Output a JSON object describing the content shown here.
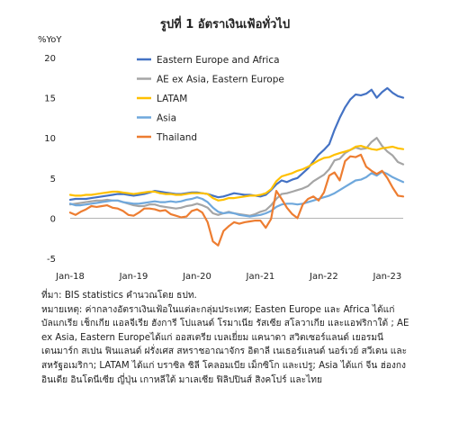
{
  "chart_data": {
    "type": "line",
    "title": "รูปที่ 1 อัตราเงินเฟ้อทั่วไป",
    "ylabel": "%YoY",
    "xlabel": "",
    "ylim": [
      -5,
      20
    ],
    "yticks": [
      -5,
      0,
      5,
      10,
      15,
      20
    ],
    "x_ticks": [
      "Jan-18",
      "Jan-19",
      "Jan-20",
      "Jan-21",
      "Jan-22",
      "Jan-23"
    ],
    "x_range": [
      "2018-01",
      "2023-04"
    ],
    "grid": false,
    "legend": "top-right",
    "x": [
      "2018-01",
      "2018-02",
      "2018-03",
      "2018-04",
      "2018-05",
      "2018-06",
      "2018-07",
      "2018-08",
      "2018-09",
      "2018-10",
      "2018-11",
      "2018-12",
      "2019-01",
      "2019-02",
      "2019-03",
      "2019-04",
      "2019-05",
      "2019-06",
      "2019-07",
      "2019-08",
      "2019-09",
      "2019-10",
      "2019-11",
      "2019-12",
      "2020-01",
      "2020-02",
      "2020-03",
      "2020-04",
      "2020-05",
      "2020-06",
      "2020-07",
      "2020-08",
      "2020-09",
      "2020-10",
      "2020-11",
      "2020-12",
      "2021-01",
      "2021-02",
      "2021-03",
      "2021-04",
      "2021-05",
      "2021-06",
      "2021-07",
      "2021-08",
      "2021-09",
      "2021-10",
      "2021-11",
      "2021-12",
      "2022-01",
      "2022-02",
      "2022-03",
      "2022-04",
      "2022-05",
      "2022-06",
      "2022-07",
      "2022-08",
      "2022-09",
      "2022-10",
      "2022-11",
      "2022-12",
      "2023-01",
      "2023-02",
      "2023-03",
      "2023-04"
    ],
    "series": [
      {
        "name": "Eastern Europe and Africa",
        "color": "#4472c4",
        "values": [
          2.3,
          2.4,
          2.4,
          2.4,
          2.5,
          2.6,
          2.7,
          2.8,
          2.9,
          3.0,
          3.0,
          2.9,
          2.8,
          2.9,
          3.0,
          3.2,
          3.4,
          3.3,
          3.2,
          3.1,
          3.0,
          3.0,
          3.1,
          3.2,
          3.2,
          3.1,
          3.0,
          2.8,
          2.6,
          2.7,
          2.9,
          3.1,
          3.0,
          2.9,
          2.9,
          2.8,
          2.7,
          2.9,
          3.5,
          4.2,
          4.7,
          4.5,
          4.8,
          5.0,
          5.6,
          6.2,
          7.1,
          7.9,
          8.5,
          9.2,
          11.0,
          12.5,
          13.8,
          14.8,
          15.4,
          15.3,
          15.5,
          16.0,
          15.0,
          15.7,
          16.2,
          15.6,
          15.2,
          15.0
        ]
      },
      {
        "name": "AE ex Asia, Eastern Europe",
        "color": "#a5a5a5",
        "values": [
          1.7,
          1.8,
          1.9,
          2.0,
          2.1,
          2.2,
          2.2,
          2.3,
          2.2,
          2.2,
          2.0,
          1.8,
          1.6,
          1.5,
          1.5,
          1.7,
          1.7,
          1.5,
          1.4,
          1.3,
          1.2,
          1.3,
          1.5,
          1.6,
          1.8,
          1.6,
          1.3,
          0.6,
          0.4,
          0.6,
          0.8,
          0.6,
          0.5,
          0.4,
          0.3,
          0.5,
          0.8,
          1.0,
          1.6,
          2.4,
          3.0,
          3.1,
          3.3,
          3.5,
          3.7,
          4.0,
          4.6,
          5.0,
          5.4,
          6.1,
          7.2,
          7.4,
          8.1,
          8.5,
          8.8,
          8.6,
          8.7,
          9.5,
          10.0,
          9.0,
          8.3,
          7.8,
          7.0,
          6.7
        ]
      },
      {
        "name": "LATAM",
        "color": "#ffc000",
        "values": [
          2.9,
          2.8,
          2.8,
          2.9,
          2.9,
          3.0,
          3.1,
          3.2,
          3.3,
          3.3,
          3.2,
          3.1,
          3.0,
          3.1,
          3.2,
          3.3,
          3.3,
          3.1,
          3.0,
          3.0,
          2.9,
          2.9,
          3.0,
          3.1,
          3.1,
          3.1,
          3.0,
          2.5,
          2.2,
          2.3,
          2.5,
          2.5,
          2.6,
          2.7,
          2.8,
          2.8,
          2.9,
          3.1,
          3.6,
          4.6,
          5.2,
          5.4,
          5.6,
          5.9,
          6.1,
          6.4,
          6.8,
          7.2,
          7.5,
          7.6,
          7.9,
          8.1,
          8.3,
          8.5,
          8.9,
          9.0,
          8.8,
          8.6,
          8.5,
          8.7,
          8.8,
          8.9,
          8.7,
          8.6
        ]
      },
      {
        "name": "Asia",
        "color": "#6fa8dc",
        "values": [
          1.8,
          1.6,
          1.6,
          1.7,
          1.8,
          1.9,
          2.0,
          2.1,
          2.2,
          2.2,
          2.0,
          1.9,
          1.8,
          1.8,
          1.9,
          2.0,
          2.1,
          2.0,
          2.0,
          2.1,
          2.0,
          2.1,
          2.3,
          2.4,
          2.6,
          2.4,
          2.0,
          1.3,
          0.8,
          0.6,
          0.7,
          0.6,
          0.4,
          0.3,
          0.2,
          0.3,
          0.4,
          0.6,
          0.9,
          1.4,
          1.7,
          1.8,
          1.8,
          1.7,
          1.8,
          2.0,
          2.2,
          2.4,
          2.6,
          2.8,
          3.1,
          3.5,
          3.9,
          4.3,
          4.7,
          4.8,
          5.1,
          5.6,
          5.3,
          5.8,
          5.5,
          5.1,
          4.8,
          4.5
        ]
      },
      {
        "name": "Thailand",
        "color": "#ed7d31",
        "values": [
          0.7,
          0.4,
          0.8,
          1.1,
          1.5,
          1.4,
          1.5,
          1.6,
          1.3,
          1.2,
          0.9,
          0.4,
          0.3,
          0.7,
          1.2,
          1.2,
          1.1,
          0.9,
          1.0,
          0.5,
          0.3,
          0.1,
          0.2,
          0.9,
          1.1,
          0.7,
          -0.5,
          -2.9,
          -3.4,
          -1.6,
          -1.0,
          -0.5,
          -0.7,
          -0.5,
          -0.4,
          -0.3,
          -0.3,
          -1.2,
          -0.1,
          3.4,
          2.4,
          1.3,
          0.5,
          0.0,
          1.7,
          2.4,
          2.7,
          2.2,
          3.2,
          5.3,
          5.7,
          4.7,
          7.1,
          7.7,
          7.6,
          7.9,
          6.4,
          5.9,
          5.5,
          5.9,
          5.0,
          3.8,
          2.8,
          2.7
        ]
      }
    ]
  },
  "notes": {
    "source": "ที่มา: BIS statistics คำนวณโดย ธปท.",
    "remark": "หมายเหตุ: ค่ากลางอัตราเงินเฟ้อในแต่ละกลุ่มประเทศ; Easten Europe และ Africa ได้แก่ บัลแกเรีย เช็กเกีย แอลจีเรีย ฮังการี โปแลนด์ โรมาเนีย รัสเซีย สโลวาเกีย และแอฟริกาใต้ ; AE ex Asia, Eastern Europeได้แก่ ออสเตรีย เบลเยี่ยม แคนาดา สวิตเซอร์แลนด์ เยอรมนี เดนมาร์ก สเปน ฟินแลนด์ ฝรั่งเศส สหราชอาณาจักร อิตาลี เนเธอร์แลนด์ นอร์เวย์ สวีเดน และสหรัฐอเมริกา; LATAM ได้แก่ บราซิล ชิลี โคลอมเบีย เม็กซิโก และเปรู; Asia ได้แก่ จีน ฮ่องกง อินเดีย อินโดนีเซีย ญี่ปุ่น เกาหลีใต้ มาเลเซีย ฟิลิปปินส์ สิงคโปร์ และไทย"
  }
}
